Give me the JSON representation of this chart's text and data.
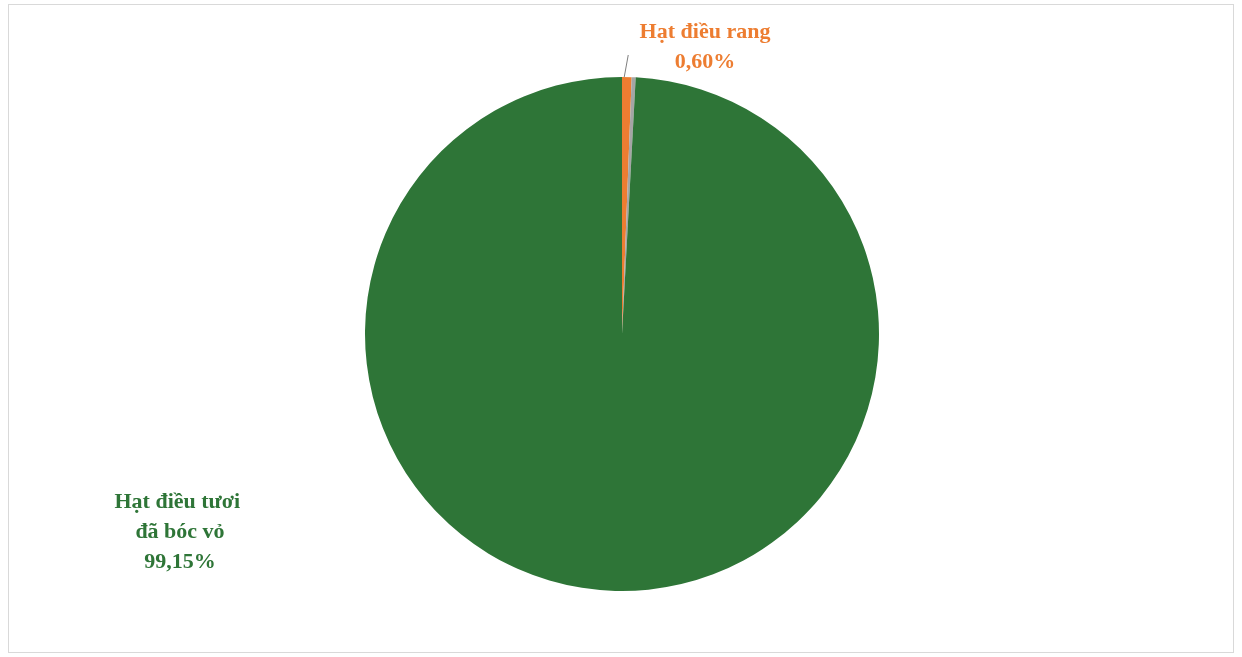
{
  "chart_data": {
    "type": "pie",
    "categories": [
      "Hạt điều rang",
      null,
      "Hạt điều tươi đã bóc vỏ"
    ],
    "values": [
      0.6,
      0.25,
      99.15
    ],
    "colors": [
      "#ed7d31",
      "#a5a5a5",
      "#2e7537"
    ],
    "value_labels": [
      "0,60%",
      null,
      "99,15%"
    ],
    "legend": false
  }
}
